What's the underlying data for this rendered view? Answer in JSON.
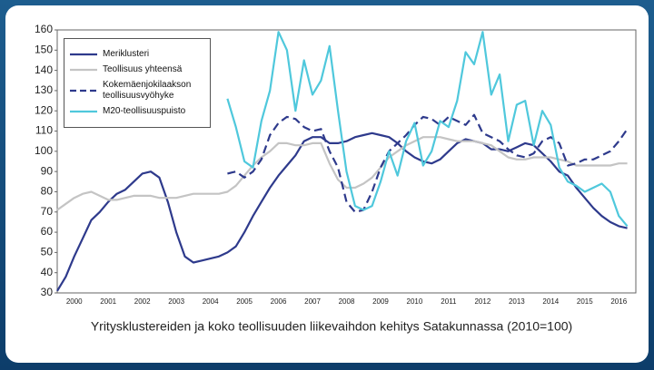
{
  "chart_data": {
    "type": "line",
    "caption": "Yritysklustereiden ja koko teollisuuden liikevaihdon kehitys Satakunnassa (2010=100)",
    "x": [
      2000,
      2000.25,
      2000.5,
      2000.75,
      2001,
      2001.25,
      2001.5,
      2001.75,
      2002,
      2002.25,
      2002.5,
      2002.75,
      2003,
      2003.25,
      2003.5,
      2003.75,
      2004,
      2004.25,
      2004.5,
      2004.75,
      2005,
      2005.25,
      2005.5,
      2005.75,
      2006,
      2006.25,
      2006.5,
      2006.75,
      2007,
      2007.25,
      2007.5,
      2007.75,
      2008,
      2008.25,
      2008.5,
      2008.75,
      2009,
      2009.25,
      2009.5,
      2009.75,
      2010,
      2010.25,
      2010.5,
      2010.75,
      2011,
      2011.25,
      2011.5,
      2011.75,
      2012,
      2012.25,
      2012.5,
      2012.75,
      2013,
      2013.25,
      2013.5,
      2013.75,
      2014,
      2014.25,
      2014.5,
      2014.75,
      2015,
      2015.25,
      2015.5,
      2015.75,
      2016,
      2016.25,
      2016.5,
      2016.75
    ],
    "xlim": [
      2000,
      2017
    ],
    "xticks": [
      {
        "value": 2000.5,
        "label": "2000"
      },
      {
        "value": 2001.5,
        "label": "2001"
      },
      {
        "value": 2002.5,
        "label": "2002"
      },
      {
        "value": 2003.5,
        "label": "2003"
      },
      {
        "value": 2004.5,
        "label": "2004"
      },
      {
        "value": 2005.5,
        "label": "2005"
      },
      {
        "value": 2006.5,
        "label": "2006"
      },
      {
        "value": 2007.5,
        "label": "2007"
      },
      {
        "value": 2008.5,
        "label": "2008"
      },
      {
        "value": 2009.5,
        "label": "2009"
      },
      {
        "value": 2010.5,
        "label": "2010"
      },
      {
        "value": 2011.5,
        "label": "2011"
      },
      {
        "value": 2012.5,
        "label": "2012"
      },
      {
        "value": 2013.5,
        "label": "2013"
      },
      {
        "value": 2014.5,
        "label": "2014"
      },
      {
        "value": 2015.5,
        "label": "2015"
      },
      {
        "value": 2016.5,
        "label": "2016"
      }
    ],
    "ylim": [
      30,
      160
    ],
    "yticks": [
      30,
      40,
      50,
      60,
      70,
      80,
      90,
      100,
      110,
      120,
      130,
      140,
      150,
      160
    ],
    "grid": false,
    "legend": "top-left",
    "series": [
      {
        "name": "Meriklusteri",
        "color": "#2e3a8c",
        "dashed": false,
        "values": [
          31,
          38,
          48,
          57,
          66,
          70,
          75,
          79,
          81,
          85,
          89,
          90,
          87,
          75,
          60,
          48,
          45,
          46,
          47,
          48,
          50,
          53,
          60,
          68,
          75,
          82,
          88,
          93,
          98,
          105,
          107,
          107,
          104,
          104,
          105,
          107,
          108,
          109,
          108,
          107,
          104,
          100,
          97,
          95,
          94,
          96,
          100,
          104,
          106,
          105,
          104,
          101,
          101,
          100,
          102,
          104,
          103,
          99,
          95,
          90,
          88,
          82,
          77,
          72,
          68,
          65,
          63,
          62
        ]
      },
      {
        "name": "Teollisuus yhteensä",
        "color": "#c4c4c4",
        "dashed": false,
        "values": [
          71,
          74,
          77,
          79,
          80,
          78,
          76,
          76,
          77,
          78,
          78,
          78,
          77,
          77,
          77,
          78,
          79,
          79,
          79,
          79,
          80,
          83,
          88,
          93,
          97,
          100,
          104,
          104,
          103,
          103,
          104,
          104,
          94,
          86,
          82,
          82,
          84,
          87,
          92,
          97,
          100,
          103,
          105,
          107,
          107,
          107,
          106,
          105,
          105,
          105,
          104,
          103,
          100,
          97,
          96,
          96,
          97,
          97,
          97,
          96,
          95,
          93,
          93,
          93,
          93,
          93,
          94,
          94
        ]
      },
      {
        "name": "Kokemäenjokilaakson teollisuusvyöhyke",
        "color": "#2e3a8c",
        "dashed": true,
        "values": [
          null,
          null,
          null,
          null,
          null,
          null,
          null,
          null,
          null,
          null,
          null,
          null,
          null,
          null,
          null,
          null,
          null,
          null,
          null,
          null,
          89,
          90,
          87,
          90,
          96,
          108,
          114,
          117,
          116,
          112,
          110,
          111,
          100,
          92,
          75,
          70,
          71,
          80,
          92,
          100,
          104,
          108,
          113,
          117,
          116,
          113,
          117,
          115,
          113,
          118,
          109,
          107,
          105,
          101,
          98,
          97,
          99,
          105,
          107,
          104,
          93,
          94,
          96,
          96,
          98,
          100,
          105,
          111
        ]
      },
      {
        "name": "M20-teollisuuspuisto",
        "color": "#4fc8dc",
        "dashed": false,
        "values": [
          null,
          null,
          null,
          null,
          null,
          null,
          null,
          null,
          null,
          null,
          null,
          null,
          null,
          null,
          null,
          null,
          null,
          null,
          null,
          null,
          126,
          112,
          95,
          92,
          115,
          130,
          159,
          150,
          120,
          145,
          128,
          135,
          152,
          120,
          90,
          73,
          71,
          73,
          85,
          100,
          88,
          105,
          114,
          93,
          100,
          115,
          112,
          125,
          149,
          143,
          159,
          128,
          138,
          105,
          123,
          125,
          103,
          120,
          113,
          92,
          85,
          83,
          80,
          82,
          84,
          80,
          68,
          63
        ]
      }
    ]
  }
}
